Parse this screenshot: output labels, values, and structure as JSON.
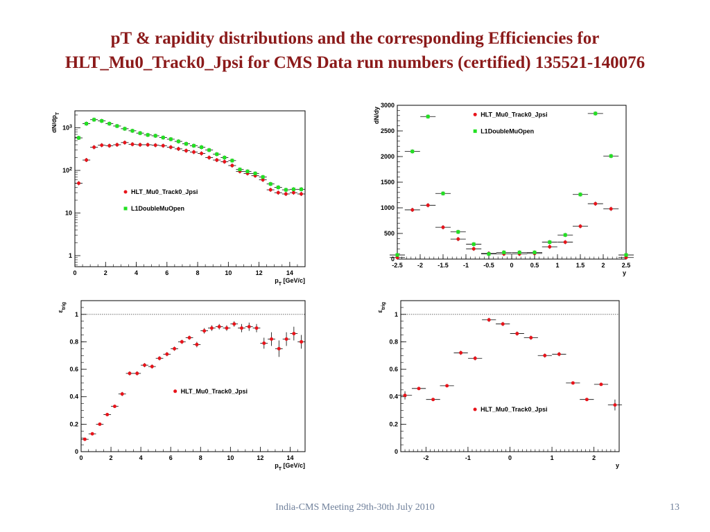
{
  "slide": {
    "title_line1": "pT & rapidity distributions and the corresponding Efficiencies for",
    "title_line2": "HLT_Mu0_Track0_Jpsi for CMS Data run numbers (certified) 135521-140076",
    "footer": "India-CMS Meeting 29th-30th July 2010",
    "page_number": "13",
    "colors": {
      "title": "#8b1a1a",
      "red_series": "#e8141b",
      "green_series": "#22e022",
      "footer": "#6e7f9a"
    }
  },
  "chart_data": [
    {
      "type": "scatter",
      "ylabel": "dN/dp_T",
      "xlabel": "p_T [GeV/c]",
      "xlim": [
        0,
        15
      ],
      "ylim": [
        0.55,
        2500
      ],
      "yscale": "log",
      "xticks": [
        0,
        2,
        4,
        6,
        8,
        10,
        12,
        14
      ],
      "yticks": [
        {
          "v": 1,
          "l": "1"
        },
        {
          "v": 10,
          "l": "10"
        },
        {
          "v": 100,
          "l": "10^2"
        },
        {
          "v": 1000,
          "l": "10^3"
        }
      ],
      "legend_position": "center",
      "x": [
        0.25,
        0.75,
        1.25,
        1.75,
        2.25,
        2.75,
        3.25,
        3.75,
        4.25,
        4.75,
        5.25,
        5.75,
        6.25,
        6.75,
        7.25,
        7.75,
        8.25,
        8.75,
        9.25,
        9.75,
        10.25,
        10.75,
        11.25,
        11.75,
        12.25,
        12.75,
        13.25,
        13.75,
        14.25,
        14.75
      ],
      "xerr": 0.25,
      "series": [
        {
          "name": "HLT_Mu0_Track0_Jpsi",
          "color": "#e8141b",
          "marker": "circle",
          "values": [
            50,
            175,
            350,
            390,
            380,
            400,
            450,
            410,
            400,
            400,
            390,
            380,
            350,
            320,
            290,
            270,
            250,
            200,
            175,
            160,
            130,
            95,
            85,
            75,
            60,
            35,
            30,
            28,
            30,
            28
          ]
        },
        {
          "name": "L1DoubleMuOpen",
          "color": "#22e022",
          "marker": "square",
          "values": [
            580,
            1250,
            1550,
            1450,
            1250,
            1100,
            950,
            850,
            750,
            680,
            650,
            590,
            540,
            480,
            420,
            380,
            350,
            300,
            240,
            200,
            170,
            105,
            95,
            85,
            70,
            48,
            40,
            35,
            36,
            36
          ]
        }
      ]
    },
    {
      "type": "scatter",
      "ylabel": "dN/dy",
      "xlabel": "y",
      "xlim": [
        -2.5,
        2.5
      ],
      "ylim": [
        0,
        3000
      ],
      "xticks": [
        {
          "v": -2.5,
          "l": "-2.5"
        },
        {
          "v": -2,
          "l": "-2"
        },
        {
          "v": -1.5,
          "l": "-1.5"
        },
        {
          "v": -1,
          "l": "-1"
        },
        {
          "v": -0.5,
          "l": "-0.5"
        },
        {
          "v": 0,
          "l": "0"
        },
        {
          "v": 0.5,
          "l": "0.5"
        },
        {
          "v": 1,
          "l": "1"
        },
        {
          "v": 1.5,
          "l": "1.5"
        },
        {
          "v": 2,
          "l": "2"
        },
        {
          "v": 2.5,
          "l": "2.5"
        }
      ],
      "yticks": [
        {
          "v": 0,
          "l": "0"
        },
        {
          "v": 500,
          "l": "500"
        },
        {
          "v": 1000,
          "l": "1000"
        },
        {
          "v": 1500,
          "l": "1500"
        },
        {
          "v": 2000,
          "l": "2000"
        },
        {
          "v": 2500,
          "l": "2500"
        },
        {
          "v": 3000,
          "l": "3000"
        }
      ],
      "legend_position": "top-center",
      "x": [
        -2.5,
        -2.17,
        -1.83,
        -1.5,
        -1.17,
        -0.83,
        -0.5,
        -0.17,
        0.17,
        0.5,
        0.83,
        1.17,
        1.5,
        1.83,
        2.17,
        2.5
      ],
      "xerr": 0.167,
      "series": [
        {
          "name": "HLT_Mu0_Track0_Jpsi",
          "color": "#e8141b",
          "marker": "circle",
          "values": [
            30,
            960,
            1050,
            620,
            390,
            200,
            110,
            100,
            100,
            110,
            240,
            330,
            640,
            1080,
            980,
            30
          ]
        },
        {
          "name": "L1DoubleMuOpen",
          "color": "#22e022",
          "marker": "square",
          "values": [
            80,
            2100,
            2780,
            1280,
            530,
            290,
            100,
            130,
            130,
            130,
            330,
            470,
            1260,
            2840,
            2010,
            80
          ]
        }
      ]
    },
    {
      "type": "scatter",
      "ylabel": "ε_trig",
      "xlabel": "p_T [GeV/c]",
      "xlim": [
        0,
        15
      ],
      "ylim": [
        0,
        1.1
      ],
      "xticks": [
        0,
        2,
        4,
        6,
        8,
        10,
        12,
        14
      ],
      "yticks": [
        {
          "v": 0,
          "l": "0"
        },
        {
          "v": 0.2,
          "l": "0.2"
        },
        {
          "v": 0.4,
          "l": "0.4"
        },
        {
          "v": 0.6,
          "l": "0.6"
        },
        {
          "v": 0.8,
          "l": "0.8"
        },
        {
          "v": 1,
          "l": "1"
        }
      ],
      "reference_line": 1,
      "legend_position": "center-right",
      "x": [
        0.25,
        0.75,
        1.25,
        1.75,
        2.25,
        2.75,
        3.25,
        3.75,
        4.25,
        4.75,
        5.25,
        5.75,
        6.25,
        6.75,
        7.25,
        7.75,
        8.25,
        8.75,
        9.25,
        9.75,
        10.25,
        10.75,
        11.25,
        11.75,
        12.25,
        12.75,
        13.25,
        13.75,
        14.25,
        14.75
      ],
      "xerr": 0.25,
      "series": [
        {
          "name": "HLT_Mu0_Track0_Jpsi",
          "color": "#e8141b",
          "marker": "circle",
          "values": [
            0.09,
            0.13,
            0.2,
            0.27,
            0.33,
            0.42,
            0.57,
            0.57,
            0.63,
            0.62,
            0.68,
            0.71,
            0.75,
            0.8,
            0.83,
            0.78,
            0.88,
            0.9,
            0.91,
            0.9,
            0.93,
            0.9,
            0.91,
            0.9,
            0.79,
            0.82,
            0.75,
            0.82,
            0.86,
            0.8
          ],
          "yerr": [
            0.01,
            0.01,
            0.01,
            0.01,
            0.01,
            0.015,
            0.015,
            0.015,
            0.015,
            0.015,
            0.015,
            0.015,
            0.015,
            0.015,
            0.015,
            0.02,
            0.02,
            0.02,
            0.02,
            0.02,
            0.02,
            0.03,
            0.03,
            0.03,
            0.04,
            0.05,
            0.06,
            0.05,
            0.05,
            0.05
          ]
        }
      ]
    },
    {
      "type": "scatter",
      "ylabel": "ε_trig",
      "xlabel": "y",
      "xlim": [
        -2.6,
        2.6
      ],
      "ylim": [
        0,
        1.1
      ],
      "xticks": [
        -2,
        -1,
        0,
        1,
        2
      ],
      "yticks": [
        {
          "v": 0,
          "l": "0"
        },
        {
          "v": 0.2,
          "l": "0.2"
        },
        {
          "v": 0.4,
          "l": "0.4"
        },
        {
          "v": 0.6,
          "l": "0.6"
        },
        {
          "v": 0.8,
          "l": "0.8"
        },
        {
          "v": 1,
          "l": "1"
        }
      ],
      "reference_line": 1,
      "legend_position": "bottom-center",
      "x": [
        -2.5,
        -2.17,
        -1.83,
        -1.5,
        -1.17,
        -0.83,
        -0.5,
        -0.17,
        0.17,
        0.5,
        0.83,
        1.17,
        1.5,
        1.83,
        2.17,
        2.5
      ],
      "xerr": 0.167,
      "series": [
        {
          "name": "HLT_Mu0_Track0_Jpsi",
          "color": "#e8141b",
          "marker": "circle",
          "values": [
            0.41,
            0.46,
            0.38,
            0.48,
            0.72,
            0.68,
            0.96,
            0.93,
            0.86,
            0.83,
            0.7,
            0.71,
            0.5,
            0.38,
            0.49,
            0.34
          ],
          "yerr": [
            0.03,
            0.01,
            0.01,
            0.01,
            0.015,
            0.015,
            0.015,
            0.015,
            0.015,
            0.015,
            0.015,
            0.015,
            0.01,
            0.01,
            0.01,
            0.04
          ]
        }
      ]
    }
  ]
}
